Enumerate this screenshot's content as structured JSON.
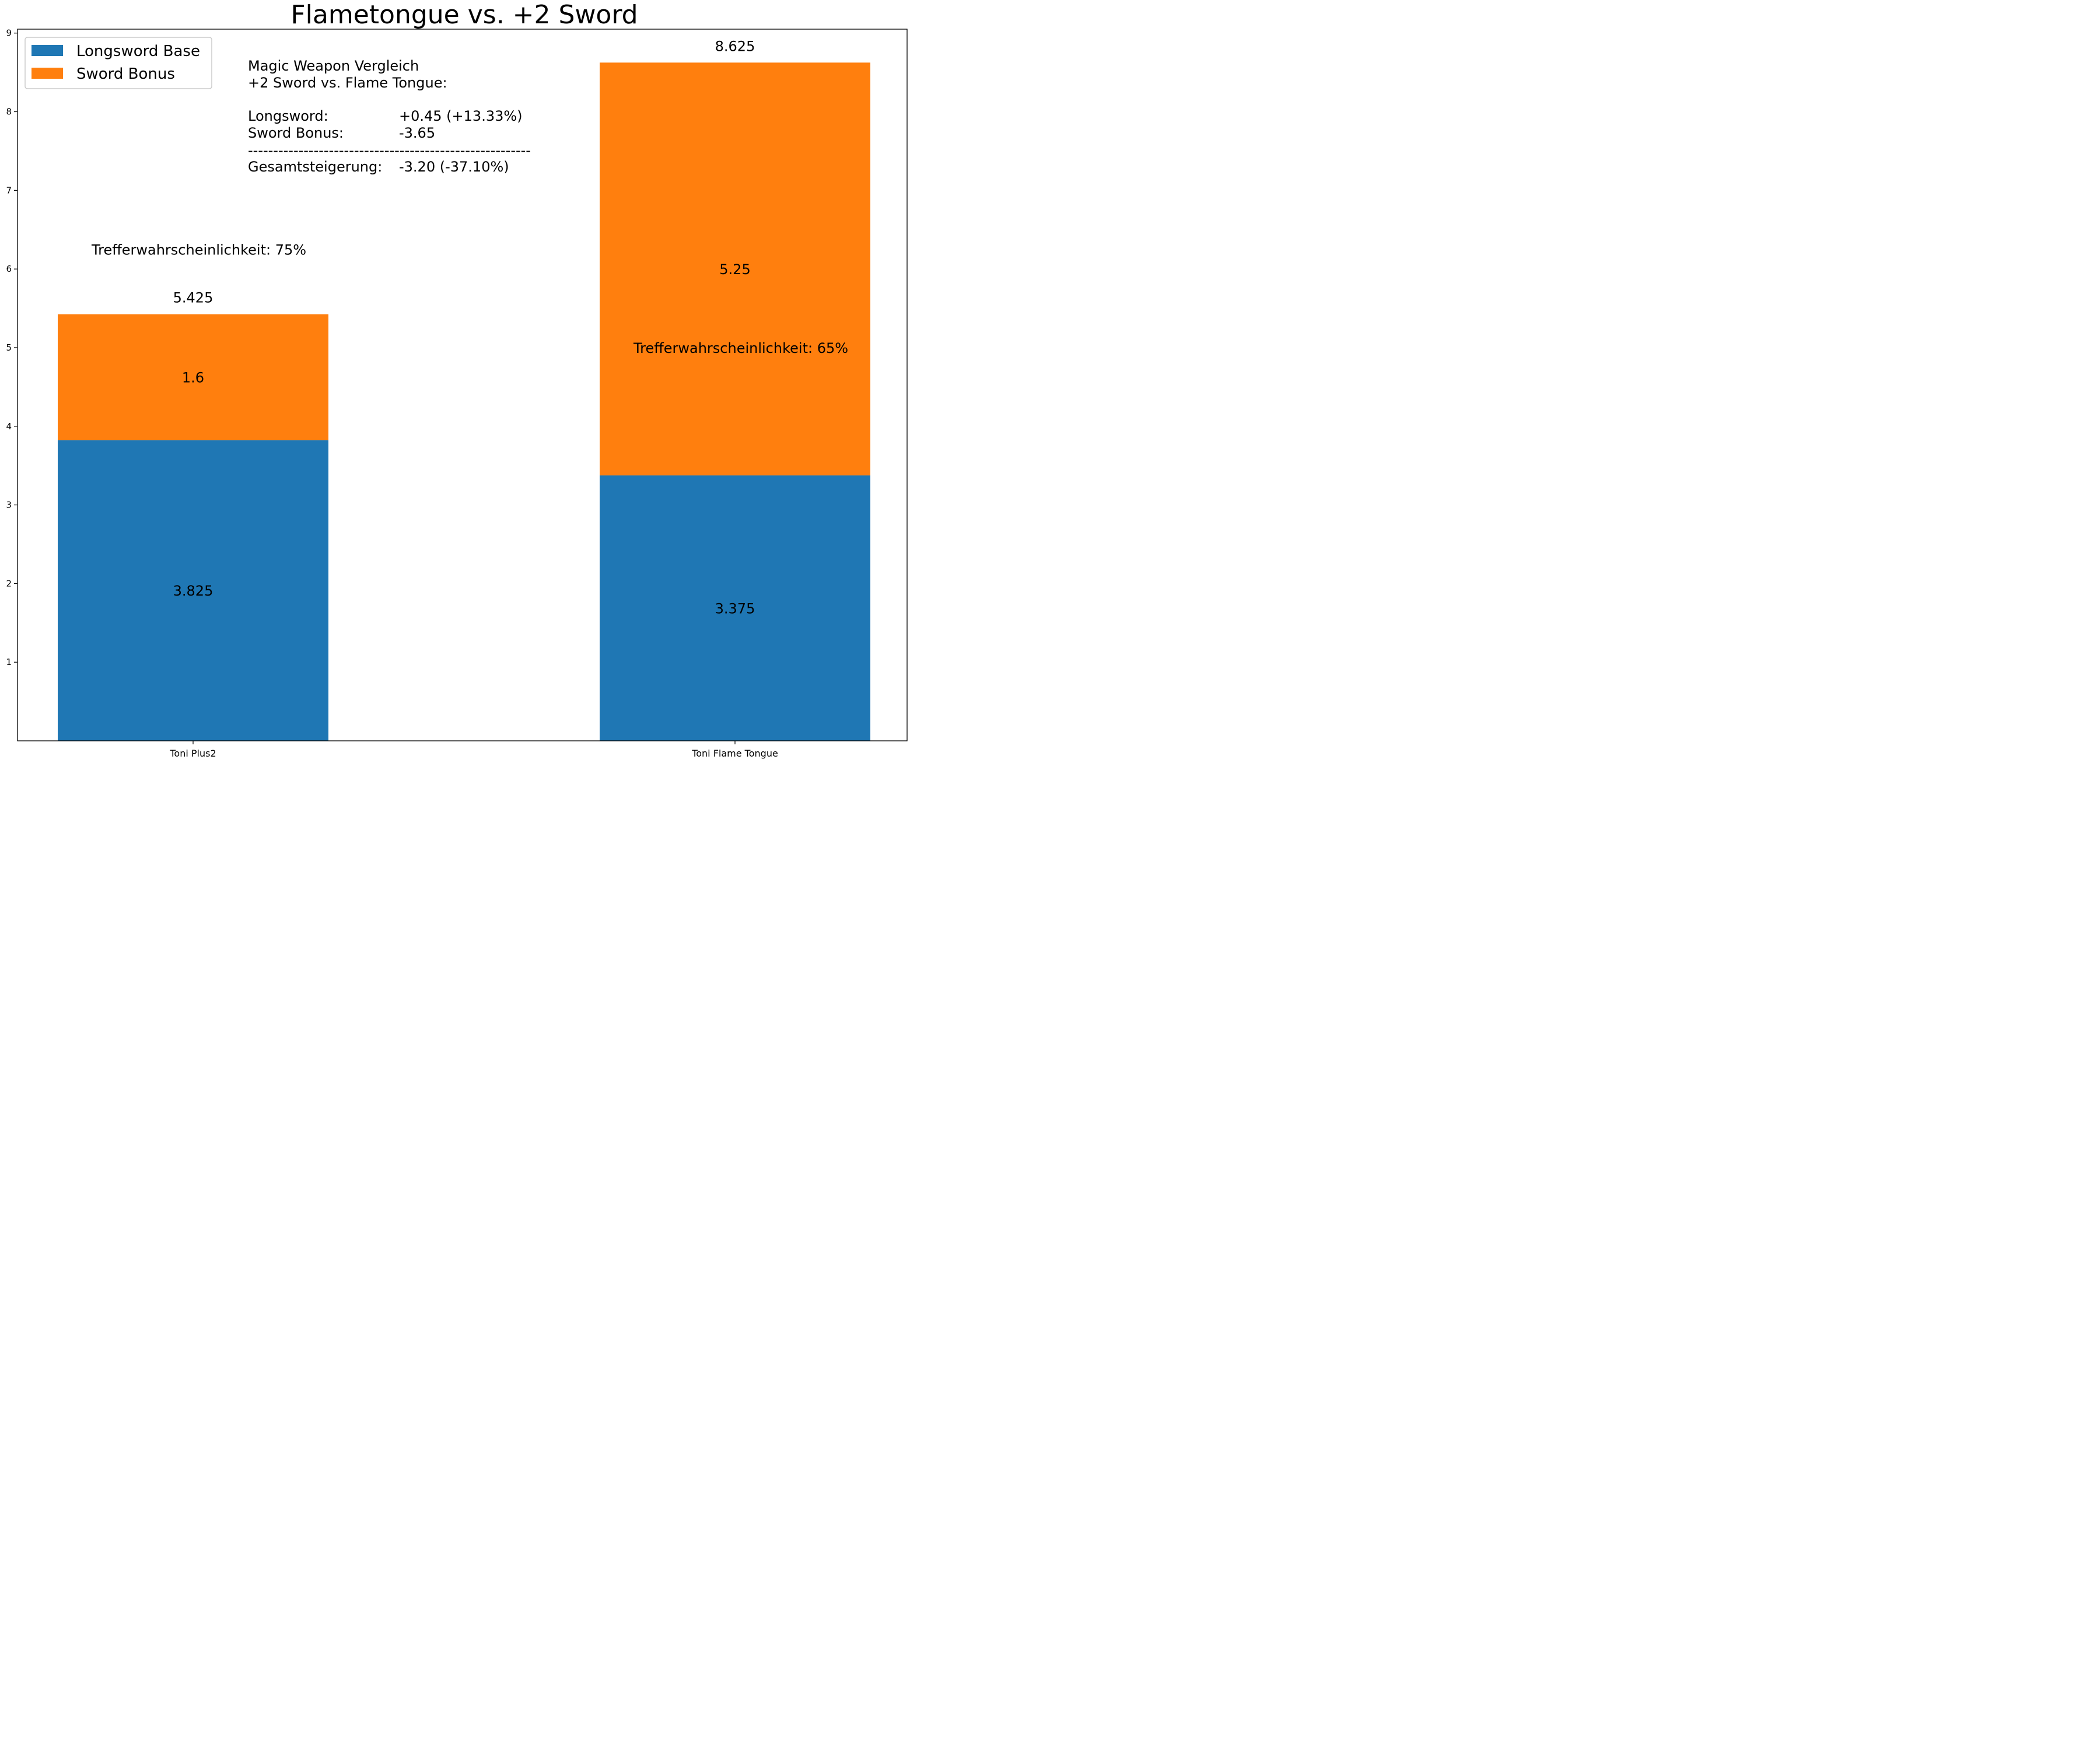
{
  "chart_data": {
    "type": "bar",
    "stacked": true,
    "title": "Flametongue vs. +2 Sword",
    "xlabel": "",
    "ylabel": "",
    "categories": [
      "Toni Plus2",
      "Toni Flame Tongue"
    ],
    "series": [
      {
        "name": "Longsword Base",
        "values": [
          3.825,
          3.375
        ],
        "color": "#1f77b4"
      },
      {
        "name": "Sword Bonus",
        "values": [
          1.6,
          5.25
        ],
        "color": "#ff7f0e"
      }
    ],
    "segment_labels": [
      [
        "3.825",
        "3.375"
      ],
      [
        "1.6",
        "5.25"
      ]
    ],
    "totals": [
      "5.425",
      "8.625"
    ],
    "ylim": [
      0,
      9.05
    ],
    "yticks": [
      1,
      2,
      3,
      4,
      5,
      6,
      7,
      8,
      9
    ],
    "legend_position": "top-left",
    "grid": false,
    "hit_labels": [
      {
        "text": "Trefferwahrscheinlichkeit: 75%",
        "category": 0,
        "y": 6.25
      },
      {
        "text": "Trefferwahrscheinlichkeit: 65%",
        "category": 1,
        "y": 5.0
      }
    ],
    "annotation_lines": [
      {
        "col1": "Magic Weapon Vergleich",
        "col2": ""
      },
      {
        "col1": " +2 Sword vs. Flame Tongue:",
        "col2": ""
      },
      {
        "col1": "",
        "col2": ""
      },
      {
        "col1": "Longsword:",
        "col2": "+0.45 (+13.33%)"
      },
      {
        "col1": "Sword Bonus:",
        "col2": " -3.65"
      },
      {
        "col1": "--------------------------------------------------------",
        "col2": ""
      },
      {
        "col1": "Gesamtsteigerung:",
        "col2": "-3.20 (-37.10%)"
      }
    ]
  }
}
